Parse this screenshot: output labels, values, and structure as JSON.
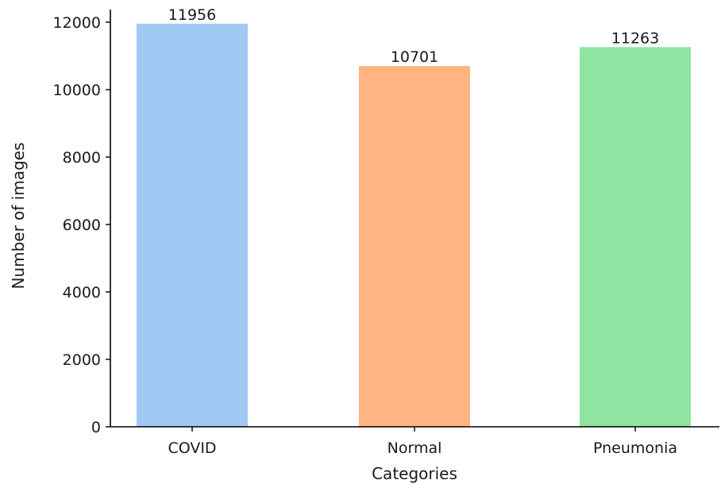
{
  "chart_data": {
    "type": "bar",
    "categories": [
      "COVID",
      "Normal",
      "Pneumonia"
    ],
    "values": [
      11956,
      10701,
      11263
    ],
    "colors": [
      "#a1c9f4",
      "#ffb482",
      "#8de5a1"
    ],
    "title": "",
    "xlabel": "Categories",
    "ylabel": "Number of images",
    "ylim": [
      0,
      12000
    ],
    "yticks": [
      0,
      2000,
      4000,
      6000,
      8000,
      10000,
      12000
    ],
    "grid": false,
    "legend": "none",
    "data_labels": true
  }
}
